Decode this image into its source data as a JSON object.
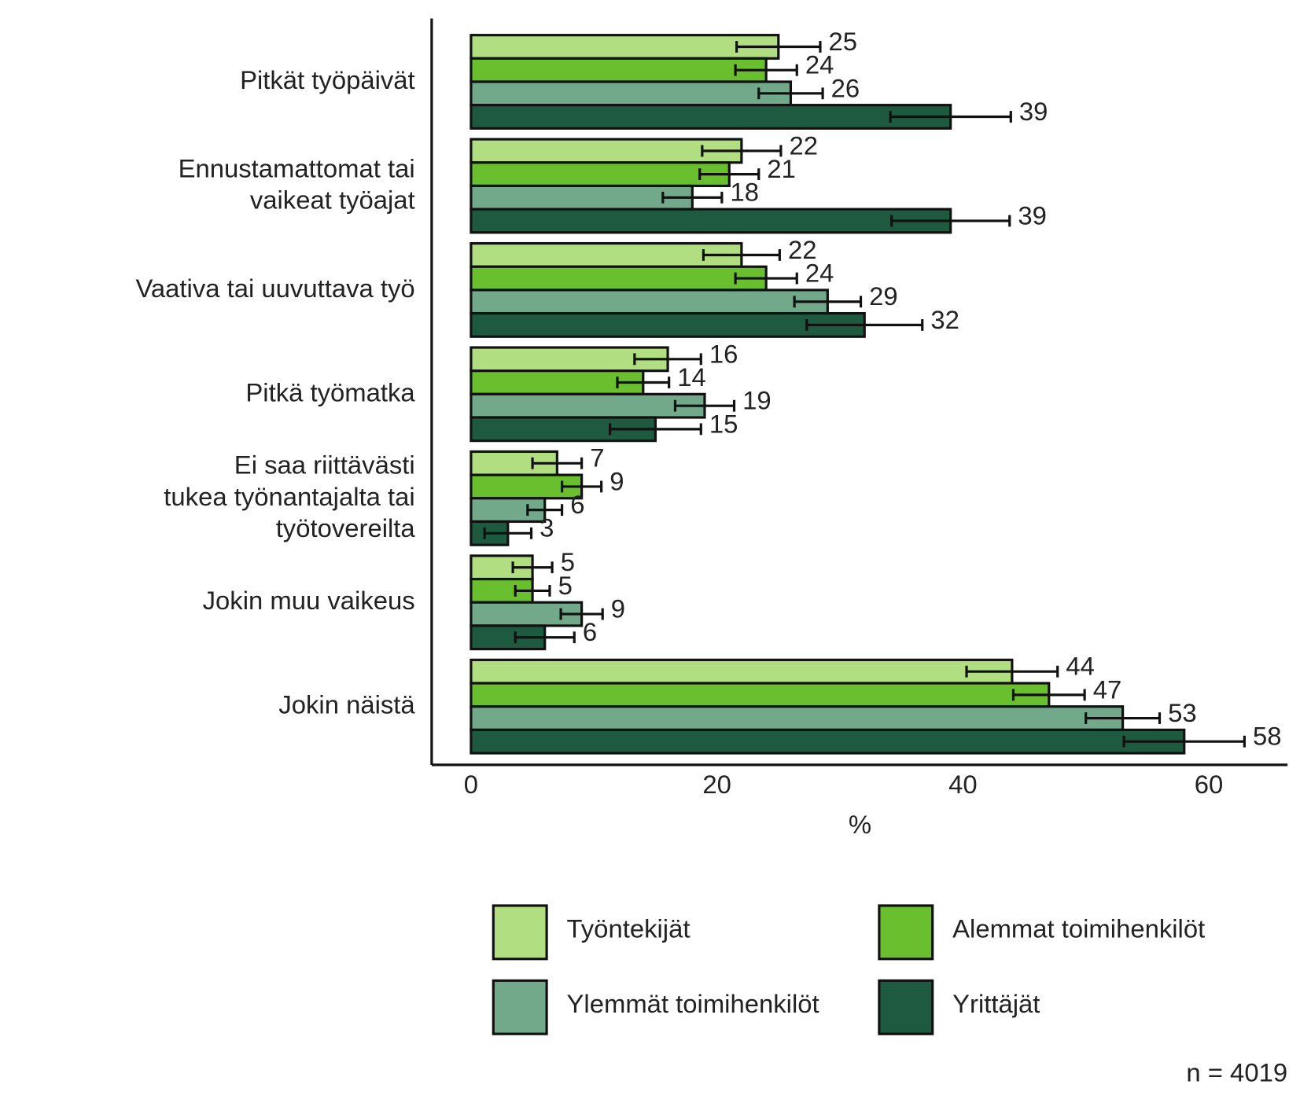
{
  "chart_data": {
    "type": "bar",
    "orientation": "horizontal",
    "categories": [
      "Pitkät työpäivät",
      "Ennustamattomat tai\nvaikeat työajat",
      "Vaativa tai uuvuttava työ",
      "Pitkä työmatka",
      "Ei saa riittävästi\ntukea työnantajalta tai\ntyötovereilta",
      "Jokin muu vaikeus",
      "Jokin näistä"
    ],
    "series": [
      {
        "name": "Työntekijät",
        "color": "#b2de82",
        "values": [
          25,
          22,
          22,
          16,
          7,
          5,
          44
        ],
        "errors": [
          3.4,
          3.2,
          3.1,
          2.7,
          2.0,
          1.6,
          3.7
        ]
      },
      {
        "name": "Alemmat toimihenkilöt",
        "color": "#6abf2e",
        "values": [
          24,
          21,
          24,
          14,
          9,
          5,
          47
        ],
        "errors": [
          2.5,
          2.4,
          2.5,
          2.1,
          1.6,
          1.4,
          2.9
        ]
      },
      {
        "name": "Ylemmät toimihenkilöt",
        "color": "#72a98a",
        "values": [
          26,
          18,
          29,
          19,
          6,
          9,
          53
        ],
        "errors": [
          2.6,
          2.4,
          2.7,
          2.4,
          1.4,
          1.7,
          3.0
        ]
      },
      {
        "name": "Yrittäjät",
        "color": "#1e5a40",
        "values": [
          39,
          39,
          32,
          15,
          3,
          6,
          58
        ],
        "errors": [
          4.9,
          4.8,
          4.7,
          3.7,
          1.9,
          2.4,
          4.9
        ]
      }
    ],
    "xlabel": "%",
    "xlim": [
      -3.2,
      66.4
    ],
    "xticks": [
      0,
      20,
      40,
      60
    ],
    "annotation": "n = 4019"
  }
}
